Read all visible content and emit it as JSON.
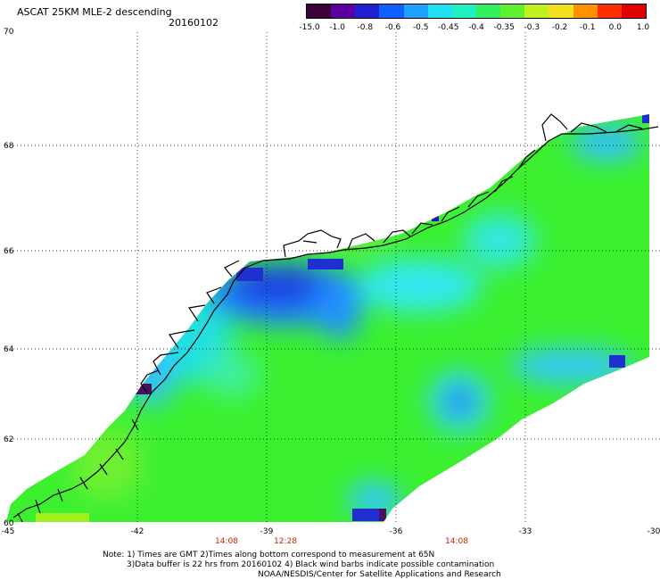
{
  "header": {
    "title": "ASCAT 25KM MLE-2 descending",
    "date": "20160102"
  },
  "colorbar": {
    "colors": [
      "#3a0038",
      "#5a00a0",
      "#2020d0",
      "#1060ff",
      "#20a0ff",
      "#20e0f0",
      "#20f0c0",
      "#30f060",
      "#60f030",
      "#c0f020",
      "#f0e020",
      "#ff9000",
      "#ff3000",
      "#e00000"
    ],
    "labels": [
      "-15.0",
      "-1.0",
      "-0.8",
      "-0.6",
      "-0.5",
      "-0.45",
      "-0.4",
      "-0.35",
      "-0.3",
      "-0.2",
      "-0.1",
      "0.0",
      "1.0"
    ]
  },
  "map": {
    "lat_labels": [
      "70",
      "68",
      "66",
      "64",
      "62",
      "60"
    ],
    "lon_labels": [
      "-45",
      "-42",
      "-39",
      "-36",
      "-33",
      "-30"
    ],
    "time_labels": [
      "14:08",
      "12:28",
      "14:08"
    ],
    "time_color": "#cc2200"
  },
  "notes": {
    "line1": "Note: 1) Times are GMT 2)Times along bottom correspond to measurement at 65N",
    "line2": "3)Data buffer is 22 hrs from 20160102 4) Black wind barbs indicate possible contamination",
    "line3": "NOAA/NESDIS/Center for Satellite Applications and Research"
  }
}
